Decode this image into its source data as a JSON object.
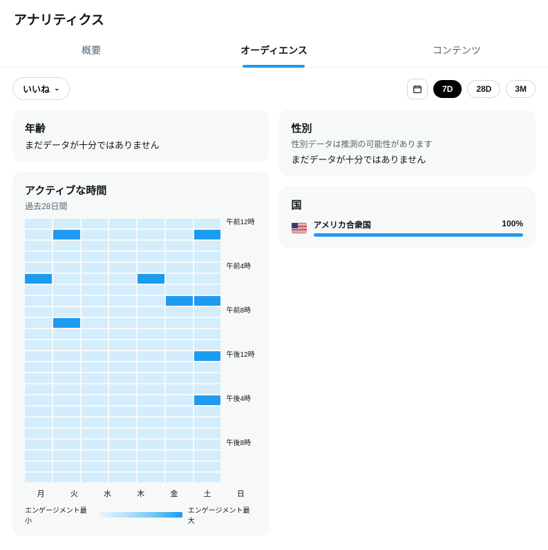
{
  "page_title": "アナリティクス",
  "tabs": {
    "overview": "概要",
    "audience": "オーディエンス",
    "content": "コンテンツ",
    "active_index": 1
  },
  "dropdown": {
    "label": "いいね"
  },
  "ranges": {
    "r7d": "7D",
    "r28d": "28D",
    "r3m": "3M",
    "active": "7D"
  },
  "age_card": {
    "title": "年齢",
    "text": "まだデータが十分ではありません"
  },
  "gender_card": {
    "title": "性別",
    "sub": "性別データは推測の可能性があります",
    "text": "まだデータが十分ではありません"
  },
  "active_card": {
    "title": "アクティブな時間",
    "sub": "過去28日間"
  },
  "heatmap": {
    "days": [
      "月",
      "火",
      "水",
      "木",
      "金",
      "土",
      "日"
    ],
    "time_labels": [
      "午前12時",
      "午前4時",
      "午前8時",
      "午後12時",
      "午後4時",
      "午後8時"
    ],
    "hours": 24,
    "cell_color_low": "#d4edfc",
    "cell_color_high": "#1d9bf0",
    "hot_cells": [
      {
        "day": 1,
        "hour": 1
      },
      {
        "day": 6,
        "hour": 1
      },
      {
        "day": 0,
        "hour": 5
      },
      {
        "day": 4,
        "hour": 5
      },
      {
        "day": 5,
        "hour": 7
      },
      {
        "day": 6,
        "hour": 7
      },
      {
        "day": 1,
        "hour": 9
      },
      {
        "day": 6,
        "hour": 12
      },
      {
        "day": 6,
        "hour": 16
      }
    ],
    "legend_min": "エンゲージメント最小",
    "legend_max": "エンゲージメント最大"
  },
  "country_card": {
    "title": "国",
    "items": [
      {
        "name": "アメリカ合衆国",
        "pct_label": "100%",
        "pct": 100
      }
    ]
  },
  "colors": {
    "accent": "#1d9bf0",
    "muted_bg": "#f7f9f9",
    "border": "#cfd9de",
    "text_muted": "#536471"
  }
}
